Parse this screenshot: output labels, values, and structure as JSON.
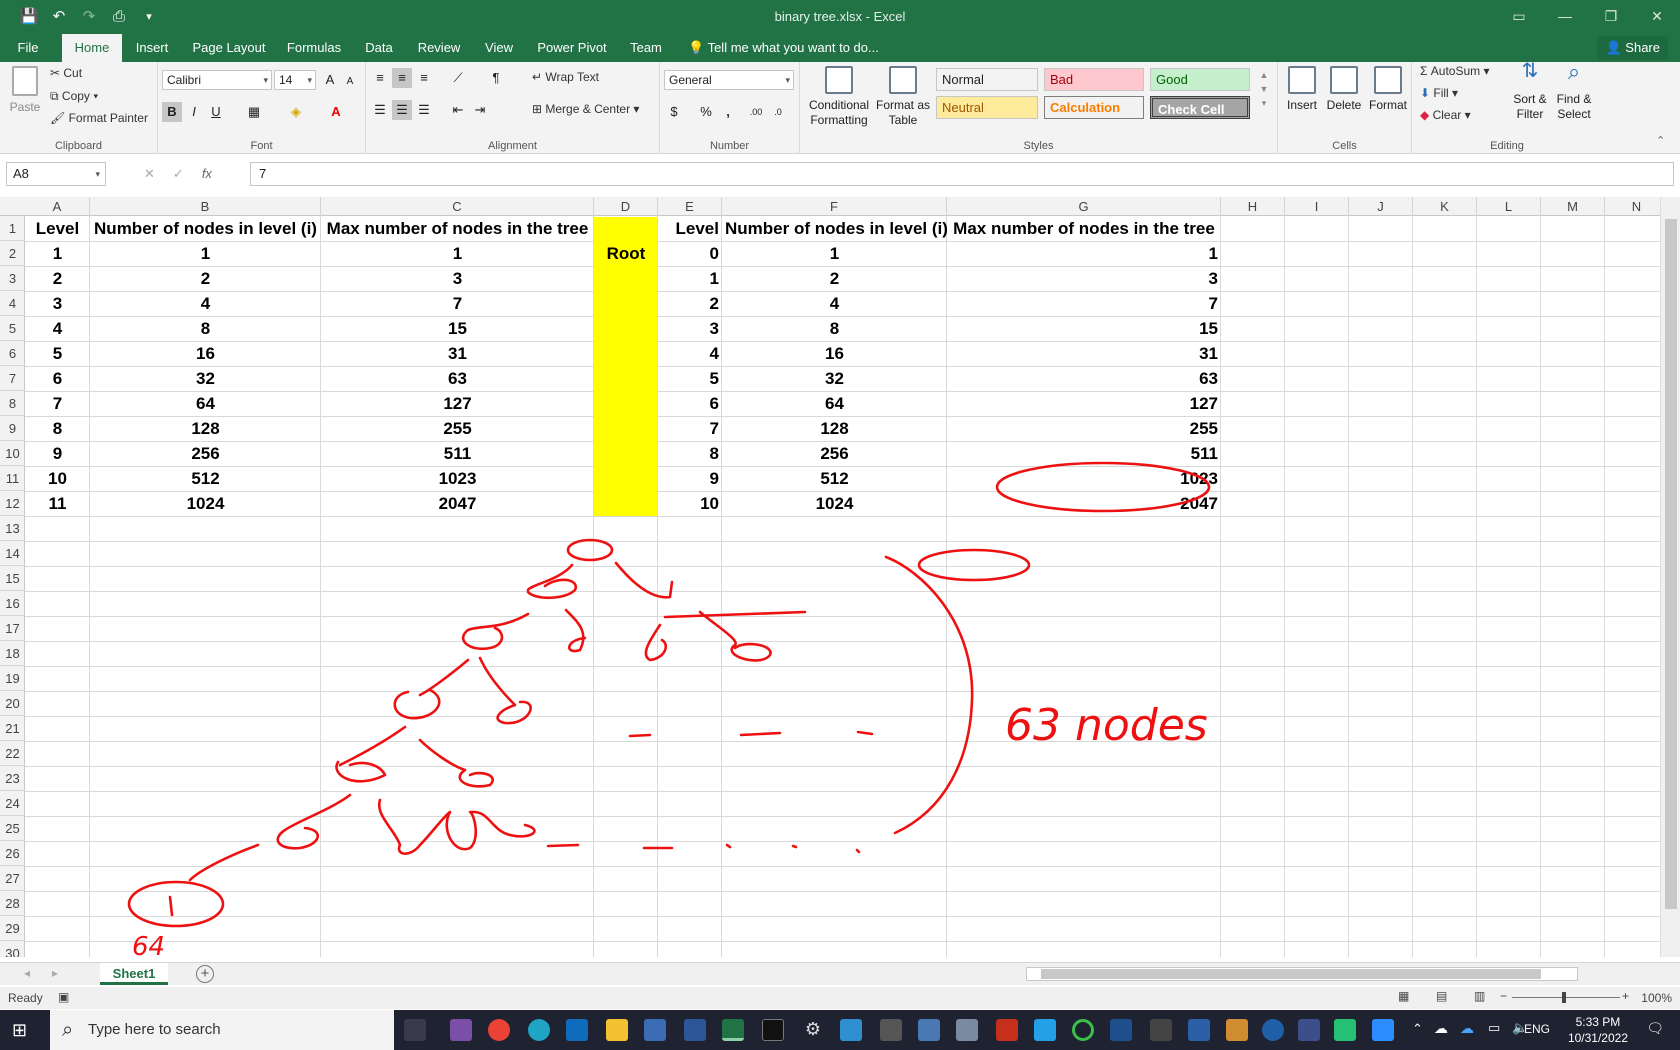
{
  "window": {
    "title": "binary tree.xlsx - Excel",
    "qat": [
      "save",
      "undo",
      "redo",
      "print-preview",
      "customize"
    ],
    "controls": [
      "▭",
      "—",
      "❐",
      "✕"
    ]
  },
  "tabs": {
    "items": [
      "File",
      "Home",
      "Insert",
      "Page Layout",
      "Formulas",
      "Data",
      "Review",
      "View",
      "Power Pivot",
      "Team"
    ],
    "active": "Home",
    "tell_me": "Tell me what you want to do...",
    "share": "Share"
  },
  "ribbon": {
    "clipboard": {
      "label": "Clipboard",
      "paste": "Paste",
      "cut": "Cut",
      "copy": "Copy",
      "format_painter": "Format Painter"
    },
    "font": {
      "label": "Font",
      "name": "Calibri",
      "size": "14",
      "bold": "B",
      "italic": "I",
      "underline": "U",
      "grow": "A",
      "shrink": "A"
    },
    "alignment": {
      "label": "Alignment",
      "wrap_text": "Wrap Text",
      "merge_center": "Merge & Center"
    },
    "number": {
      "label": "Number",
      "format": "General",
      "currency": "$",
      "percent": "%",
      "comma": ",",
      "inc_decimal": ".00",
      "dec_decimal": ".0"
    },
    "styles": {
      "label": "Styles",
      "conditional": "Conditional Formatting",
      "format_table": "Format as Table",
      "cells": [
        {
          "name": "Normal",
          "bg": "#ffffff",
          "fg": "#000000"
        },
        {
          "name": "Bad",
          "bg": "#ffc7ce",
          "fg": "#9c0006"
        },
        {
          "name": "Good",
          "bg": "#c6efce",
          "fg": "#006100"
        },
        {
          "name": "Neutral",
          "bg": "#ffeb9c",
          "fg": "#9c5700"
        },
        {
          "name": "Calculation",
          "bg": "#f2f2f2",
          "fg": "#fa7d00"
        },
        {
          "name": "Check Cell",
          "bg": "#a5a5a5",
          "fg": "#ffffff"
        }
      ]
    },
    "cells": {
      "label": "Cells",
      "insert": "Insert",
      "delete": "Delete",
      "format": "Format"
    },
    "editing": {
      "label": "Editing",
      "autosum": "AutoSum",
      "fill": "Fill",
      "clear": "Clear",
      "sort_filter": "Sort & Filter",
      "find_select": "Find & Select"
    }
  },
  "formula_bar": {
    "name_box": "A8",
    "fx": "fx",
    "value": "7"
  },
  "columns": [
    "A",
    "B",
    "C",
    "D",
    "E",
    "F",
    "G",
    "H",
    "I",
    "J",
    "K",
    "L",
    "M",
    "N"
  ],
  "rows": [
    "1",
    "2",
    "3",
    "4",
    "5",
    "6",
    "7",
    "8",
    "9",
    "10",
    "11",
    "12",
    "13",
    "14",
    "15",
    "16",
    "17",
    "18",
    "19",
    "20",
    "21",
    "22",
    "23",
    "24",
    "25",
    "26",
    "27",
    "28",
    "29",
    "30"
  ],
  "table_left": {
    "headers": [
      "Level",
      "Number of nodes in level (i)",
      "Max number of nodes in the tree"
    ],
    "rows": [
      [
        "1",
        "1",
        "1"
      ],
      [
        "2",
        "2",
        "3"
      ],
      [
        "3",
        "4",
        "7"
      ],
      [
        "4",
        "8",
        "15"
      ],
      [
        "5",
        "16",
        "31"
      ],
      [
        "6",
        "32",
        "63"
      ],
      [
        "7",
        "64",
        "127"
      ],
      [
        "8",
        "128",
        "255"
      ],
      [
        "9",
        "256",
        "511"
      ],
      [
        "10",
        "512",
        "1023"
      ],
      [
        "11",
        "1024",
        "2047"
      ]
    ]
  },
  "root_label": "Root",
  "highlight_color": "#ffff00",
  "table_right": {
    "headers": [
      "Level",
      "Number of nodes in level (i)",
      "Max number of nodes in the tree"
    ],
    "rows": [
      [
        "0",
        "1",
        "1"
      ],
      [
        "1",
        "2",
        "3"
      ],
      [
        "2",
        "4",
        "7"
      ],
      [
        "3",
        "8",
        "15"
      ],
      [
        "4",
        "16",
        "31"
      ],
      [
        "5",
        "32",
        "63"
      ],
      [
        "6",
        "64",
        "127"
      ],
      [
        "7",
        "128",
        "255"
      ],
      [
        "8",
        "256",
        "511"
      ],
      [
        "9",
        "512",
        "1023"
      ],
      [
        "10",
        "1024",
        "2047"
      ]
    ]
  },
  "sheet": {
    "tab": "Sheet1",
    "add": "+"
  },
  "status": {
    "ready": "Ready",
    "zoom": "100%"
  },
  "taskbar": {
    "search": "Type here to search",
    "lang": "ENG",
    "time": "5:33 PM",
    "date": "10/31/2022"
  },
  "ink": {
    "color": "#ee1111",
    "note_text": "63 nodes",
    "note_number": "64"
  }
}
